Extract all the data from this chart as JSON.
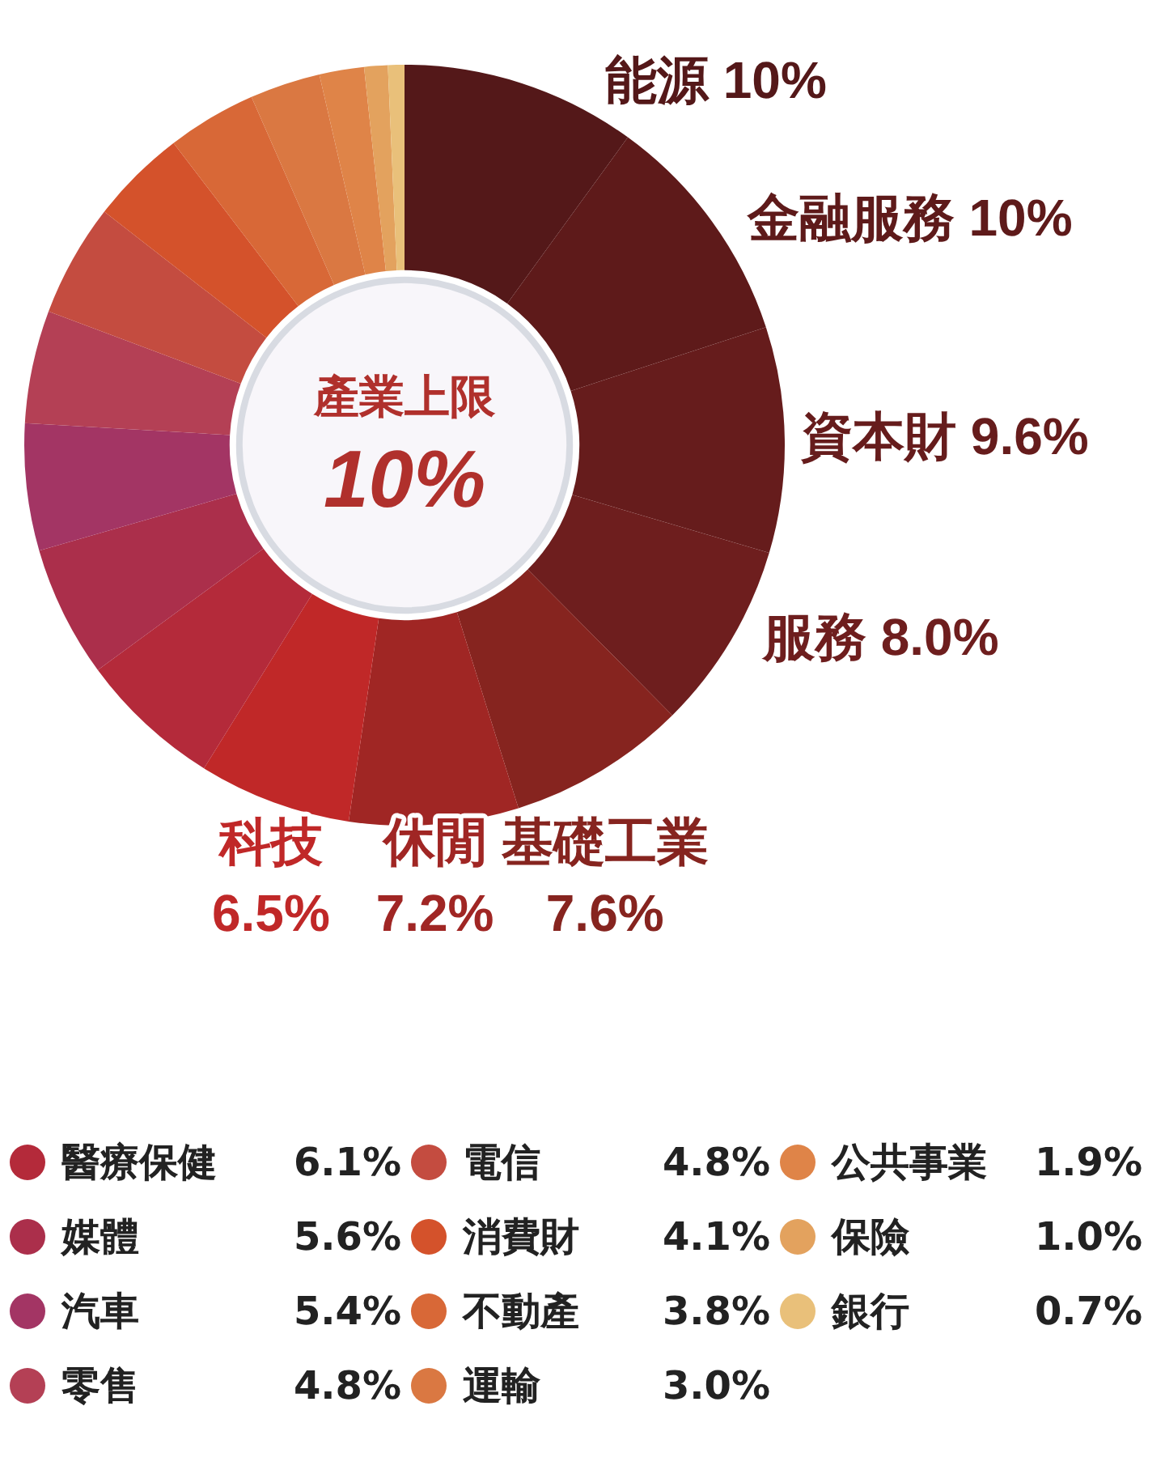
{
  "chart_data": {
    "type": "donut",
    "categories": [
      "能源",
      "金融服務",
      "資本財",
      "服務",
      "基礎工業",
      "休閒",
      "科技",
      "醫療保健",
      "媒體",
      "汽車",
      "零售",
      "電信",
      "消費財",
      "不動產",
      "運輸",
      "公共事業",
      "保險",
      "銀行"
    ],
    "values": [
      10,
      10,
      9.6,
      8.0,
      7.6,
      7.2,
      6.5,
      6.1,
      5.6,
      5.4,
      4.8,
      4.8,
      4.1,
      3.8,
      3.0,
      1.9,
      1.0,
      0.7
    ],
    "value_labels": [
      "10%",
      "10%",
      "9.6%",
      "8.0%",
      "7.6%",
      "7.2%",
      "6.5%",
      "6.1%",
      "5.6%",
      "5.4%",
      "4.8%",
      "4.8%",
      "4.1%",
      "3.8%",
      "3.0%",
      "1.9%",
      "1.0%",
      "0.7%"
    ],
    "colors": [
      "#541819",
      "#5e1a1a",
      "#661c1c",
      "#6e1e1e",
      "#86241f",
      "#a02624",
      "#c02828",
      "#b42a3a",
      "#ab2f4b",
      "#a33564",
      "#b44055",
      "#c44c40",
      "#d4522b",
      "#d86837",
      "#da7842",
      "#df8448",
      "#e3a25e",
      "#e9c07a"
    ],
    "annotations": [
      "產業上限",
      "10%"
    ],
    "legend": "bottom"
  }
}
